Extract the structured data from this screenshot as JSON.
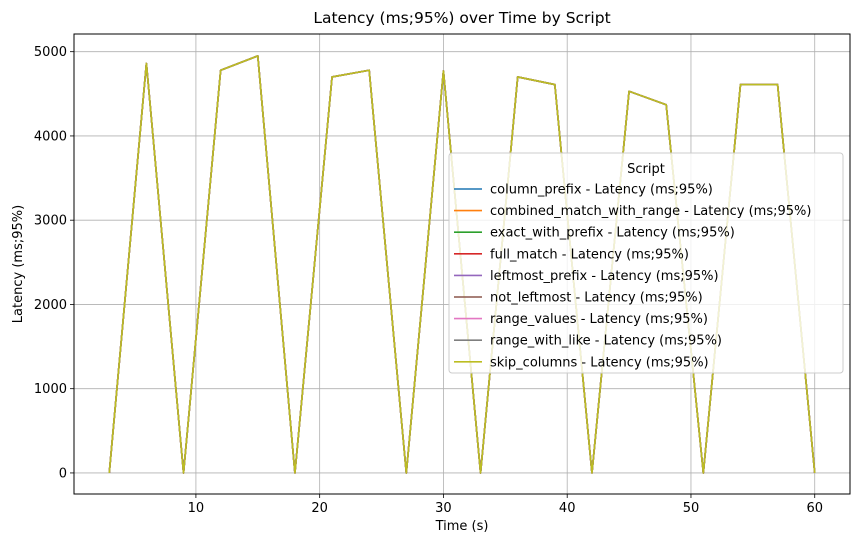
{
  "chart_data": {
    "type": "line",
    "title": "Latency (ms;95%) over Time by Script",
    "xlabel": "Time (s)",
    "ylabel": "Latency (ms;95%)",
    "xlim": [
      0.15,
      62.85
    ],
    "ylim": [
      -250,
      5210
    ],
    "xticks": [
      10,
      20,
      30,
      40,
      50,
      60
    ],
    "yticks": [
      0,
      1000,
      2000,
      3000,
      4000,
      5000
    ],
    "grid": true,
    "legend_title": "Script",
    "legend_position": "center-right",
    "x": [
      3,
      6,
      9,
      12,
      15,
      18,
      21,
      24,
      27,
      30,
      33,
      36,
      39,
      42,
      45,
      48,
      51,
      54,
      57,
      60
    ],
    "series": [
      {
        "name": "column_prefix - Latency (ms;95%)",
        "color": "#1f77b4",
        "values": [
          0,
          4860,
          0,
          4780,
          4950,
          0,
          4700,
          4780,
          0,
          4770,
          0,
          4700,
          4610,
          0,
          4530,
          4370,
          0,
          4610,
          4610,
          0
        ]
      },
      {
        "name": "combined_match_with_range - Latency (ms;95%)",
        "color": "#ff7f0e",
        "values": [
          0,
          4860,
          0,
          4780,
          4950,
          0,
          4700,
          4780,
          0,
          4770,
          0,
          4700,
          4610,
          0,
          4530,
          4370,
          0,
          4610,
          4610,
          0
        ]
      },
      {
        "name": "exact_with_prefix - Latency (ms;95%)",
        "color": "#2ca02c",
        "values": [
          0,
          4860,
          0,
          4780,
          4950,
          0,
          4700,
          4780,
          0,
          4770,
          0,
          4700,
          4610,
          0,
          4530,
          4370,
          0,
          4610,
          4610,
          0
        ]
      },
      {
        "name": "full_match - Latency (ms;95%)",
        "color": "#d62728",
        "values": [
          0,
          4860,
          0,
          4780,
          4950,
          0,
          4700,
          4780,
          0,
          4770,
          0,
          4700,
          4610,
          0,
          4530,
          4370,
          0,
          4610,
          4610,
          0
        ]
      },
      {
        "name": "leftmost_prefix - Latency (ms;95%)",
        "color": "#9467bd",
        "values": [
          0,
          4860,
          0,
          4780,
          4950,
          0,
          4700,
          4780,
          0,
          4770,
          0,
          4700,
          4610,
          0,
          4530,
          4370,
          0,
          4610,
          4610,
          0
        ]
      },
      {
        "name": "not_leftmost - Latency (ms;95%)",
        "color": "#8c564b",
        "values": [
          0,
          4860,
          0,
          4780,
          4950,
          0,
          4700,
          4780,
          0,
          4770,
          0,
          4700,
          4610,
          0,
          4530,
          4370,
          0,
          4610,
          4610,
          0
        ]
      },
      {
        "name": "range_values - Latency (ms;95%)",
        "color": "#e377c2",
        "values": [
          0,
          4860,
          0,
          4780,
          4950,
          0,
          4700,
          4780,
          0,
          4770,
          0,
          4700,
          4610,
          0,
          4530,
          4370,
          0,
          4610,
          4610,
          0
        ]
      },
      {
        "name": "range_with_like - Latency (ms;95%)",
        "color": "#7f7f7f",
        "values": [
          0,
          4860,
          0,
          4780,
          4950,
          0,
          4700,
          4780,
          0,
          4770,
          0,
          4700,
          4610,
          0,
          4530,
          4370,
          0,
          4610,
          4610,
          0
        ]
      },
      {
        "name": "skip_columns - Latency (ms;95%)",
        "color": "#bcbd22",
        "values": [
          0,
          4860,
          0,
          4780,
          4950,
          0,
          4700,
          4780,
          0,
          4770,
          0,
          4700,
          4610,
          0,
          4530,
          4370,
          0,
          4610,
          4610,
          0
        ]
      }
    ]
  }
}
